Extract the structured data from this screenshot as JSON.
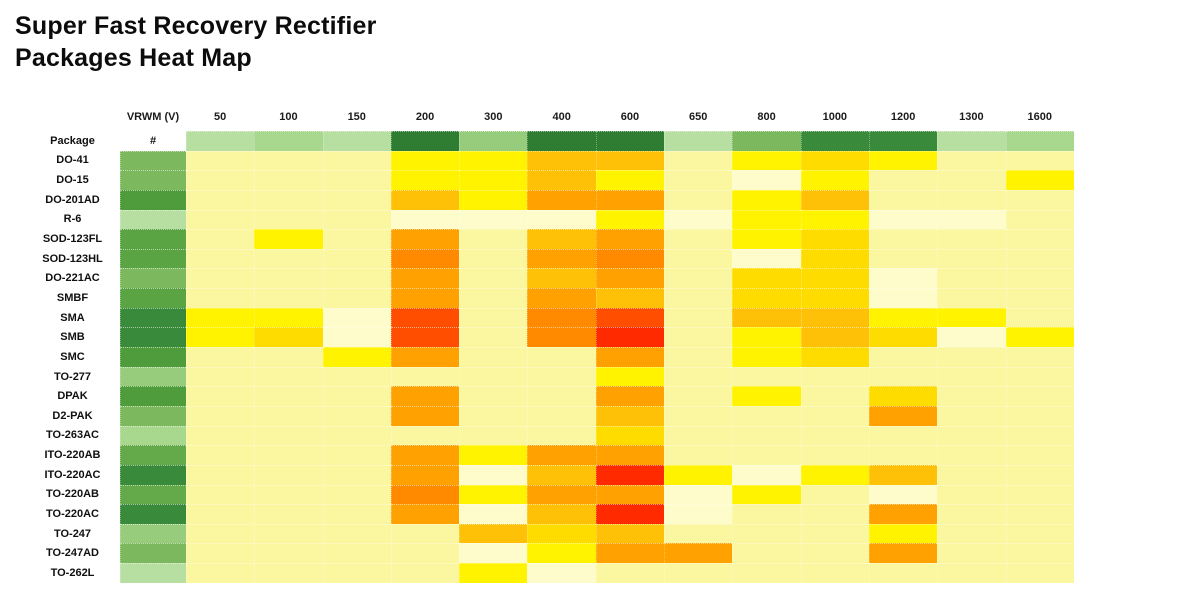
{
  "title": {
    "line1": "Super Fast Recovery Rectifier",
    "line2": "Packages Heat Map"
  },
  "palette": {
    "P": "#FBF6A0",
    "X": "#FEFCCB",
    "Y": "#FFF300",
    "G": "#FFDC00",
    "A": "#FFC107",
    "O": "#FFA201",
    "D": "#FF8A00",
    "RO": "#FF4E00",
    "R": "#FF2A00",
    "g1": "#B7DFA2",
    "g1b": "#A8D88D",
    "g1m": "#97CC7C",
    "g2": "#7CB95E",
    "g2d": "#64AA4B",
    "g3": "#5BA443",
    "g3d": "#4E9C3C",
    "g4": "#3A8A3C",
    "g5": "#2E7D32",
    "W": "#FFFFFF"
  },
  "chart_data": {
    "type": "heatmap",
    "title": "Super Fast Recovery Rectifier Packages Heat Map",
    "x_axis_label": "VRWM (V)",
    "row_header_label": "Package",
    "count_header_label": "#",
    "value_encoding": "color intensity only (no numeric cell labels shown); pale yellow = low, yellow/gold/amber/orange = mid, red = high; green shades used for Package header row and # count column",
    "columns": [
      "50",
      "100",
      "150",
      "200",
      "300",
      "400",
      "600",
      "650",
      "800",
      "1000",
      "1200",
      "1300",
      "1600"
    ],
    "header_row_shades": [
      "g1",
      "g1b",
      "g1",
      "g5",
      "g1m",
      "g5",
      "g5",
      "g1",
      "g2",
      "g4",
      "g4",
      "g1",
      "g1b"
    ],
    "rows": [
      {
        "package": "DO-41",
        "count_shade": "g2",
        "cells": [
          "P",
          "P",
          "P",
          "Y",
          "Y",
          "A",
          "A",
          "P",
          "Y",
          "G",
          "Y",
          "P",
          "P"
        ]
      },
      {
        "package": "DO-15",
        "count_shade": "g2",
        "cells": [
          "P",
          "P",
          "P",
          "Y",
          "Y",
          "A",
          "Y",
          "P",
          "X",
          "Y",
          "P",
          "P",
          "Y"
        ]
      },
      {
        "package": "DO-201AD",
        "count_shade": "g3d",
        "cells": [
          "P",
          "P",
          "P",
          "A",
          "Y",
          "O",
          "O",
          "P",
          "Y",
          "A",
          "P",
          "P",
          "P"
        ]
      },
      {
        "package": "R-6",
        "count_shade": "g1",
        "cells": [
          "P",
          "P",
          "P",
          "X",
          "X",
          "X",
          "Y",
          "X",
          "Y",
          "Y",
          "X",
          "X",
          "P"
        ]
      },
      {
        "package": "SOD-123FL",
        "count_shade": "g3",
        "cells": [
          "P",
          "Y",
          "P",
          "O",
          "P",
          "A",
          "O",
          "P",
          "Y",
          "G",
          "P",
          "P",
          "P"
        ]
      },
      {
        "package": "SOD-123HL",
        "count_shade": "g3",
        "cells": [
          "P",
          "P",
          "P",
          "D",
          "P",
          "O",
          "D",
          "P",
          "X",
          "G",
          "P",
          "P",
          "P"
        ]
      },
      {
        "package": "DO-221AC",
        "count_shade": "g2",
        "cells": [
          "P",
          "P",
          "P",
          "O",
          "P",
          "A",
          "O",
          "P",
          "G",
          "G",
          "X",
          "P",
          "P"
        ]
      },
      {
        "package": "SMBF",
        "count_shade": "g3",
        "cells": [
          "P",
          "P",
          "P",
          "O",
          "P",
          "O",
          "A",
          "P",
          "G",
          "G",
          "X",
          "P",
          "P"
        ]
      },
      {
        "package": "SMA",
        "count_shade": "g4",
        "cells": [
          "Y",
          "Y",
          "X",
          "RO",
          "P",
          "D",
          "RO",
          "P",
          "A",
          "A",
          "Y",
          "Y",
          "P"
        ]
      },
      {
        "package": "SMB",
        "count_shade": "g4",
        "cells": [
          "Y",
          "G",
          "X",
          "RO",
          "P",
          "D",
          "R",
          "P",
          "Y",
          "A",
          "G",
          "X",
          "Y"
        ]
      },
      {
        "package": "SMC",
        "count_shade": "g3d",
        "cells": [
          "P",
          "P",
          "Y",
          "O",
          "P",
          "P",
          "O",
          "P",
          "Y",
          "G",
          "P",
          "P",
          "P"
        ]
      },
      {
        "package": "TO-277",
        "count_shade": "g1m",
        "cells": [
          "P",
          "P",
          "P",
          "P",
          "P",
          "P",
          "Y",
          "P",
          "P",
          "P",
          "P",
          "P",
          "P"
        ]
      },
      {
        "package": "DPAK",
        "count_shade": "g3d",
        "cells": [
          "P",
          "P",
          "P",
          "O",
          "P",
          "P",
          "O",
          "P",
          "Y",
          "P",
          "G",
          "P",
          "P"
        ]
      },
      {
        "package": "D2-PAK",
        "count_shade": "g2",
        "cells": [
          "P",
          "P",
          "P",
          "O",
          "P",
          "P",
          "A",
          "P",
          "P",
          "P",
          "O",
          "P",
          "P"
        ]
      },
      {
        "package": "TO-263AC",
        "count_shade": "g1b",
        "cells": [
          "P",
          "P",
          "P",
          "P",
          "P",
          "P",
          "G",
          "P",
          "P",
          "P",
          "P",
          "P",
          "P"
        ]
      },
      {
        "package": "ITO-220AB",
        "count_shade": "g2d",
        "cells": [
          "P",
          "P",
          "P",
          "O",
          "Y",
          "O",
          "O",
          "P",
          "P",
          "P",
          "P",
          "P",
          "P"
        ]
      },
      {
        "package": "ITO-220AC",
        "count_shade": "g4",
        "cells": [
          "P",
          "P",
          "P",
          "O",
          "X",
          "A",
          "R",
          "Y",
          "X",
          "Y",
          "A",
          "P",
          "P"
        ]
      },
      {
        "package": "TO-220AB",
        "count_shade": "g2d",
        "cells": [
          "P",
          "P",
          "P",
          "D",
          "Y",
          "O",
          "O",
          "X",
          "Y",
          "P",
          "X",
          "P",
          "P"
        ]
      },
      {
        "package": "TO-220AC",
        "count_shade": "g4",
        "cells": [
          "P",
          "P",
          "P",
          "O",
          "X",
          "A",
          "R",
          "X",
          "P",
          "P",
          "O",
          "P",
          "P"
        ]
      },
      {
        "package": "TO-247",
        "count_shade": "g1m",
        "cells": [
          "P",
          "P",
          "P",
          "P",
          "A",
          "G",
          "A",
          "P",
          "P",
          "P",
          "Y",
          "P",
          "P"
        ]
      },
      {
        "package": "TO-247AD",
        "count_shade": "g2",
        "cells": [
          "P",
          "P",
          "P",
          "P",
          "X",
          "Y",
          "O",
          "O",
          "P",
          "P",
          "O",
          "P",
          "P"
        ]
      },
      {
        "package": "TO-262L",
        "count_shade": "g1",
        "cells": [
          "P",
          "P",
          "P",
          "P",
          "Y",
          "X",
          "P",
          "P",
          "P",
          "P",
          "P",
          "P",
          "P"
        ]
      }
    ]
  }
}
